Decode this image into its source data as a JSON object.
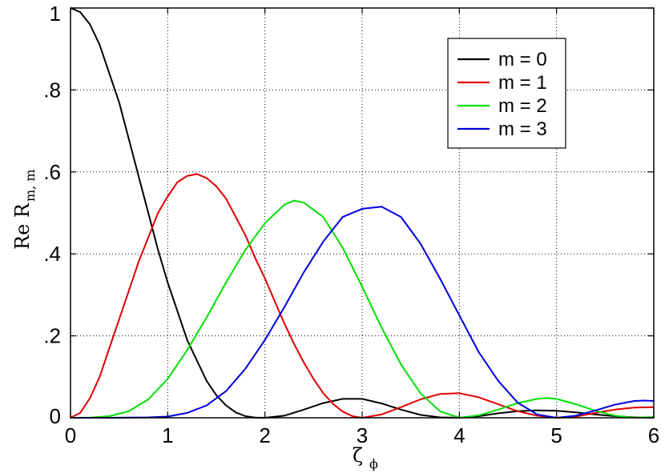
{
  "chart_data": {
    "type": "line",
    "xlabel": {
      "main": "ζ",
      "sub": "ϕ"
    },
    "ylabel": {
      "main": "Re R",
      "sub": "m, m"
    },
    "xlim": [
      0,
      6
    ],
    "ylim": [
      0,
      1
    ],
    "xticks": [
      0,
      1,
      2,
      3,
      4,
      5,
      6
    ],
    "xtick_labels": [
      "0",
      "1",
      "2",
      "3",
      "4",
      "5",
      "6"
    ],
    "yticks": [
      0,
      0.2,
      0.4,
      0.6,
      0.8,
      1.0
    ],
    "ytick_labels": [
      "0",
      ".2",
      ".4",
      ".6",
      ".8",
      "1"
    ],
    "grid": true,
    "legend_position": "top-right",
    "series": [
      {
        "name": "m = 0",
        "color": "#000000",
        "x": [
          0,
          0.1,
          0.2,
          0.3,
          0.4,
          0.5,
          0.6,
          0.7,
          0.8,
          0.9,
          1.0,
          1.1,
          1.2,
          1.3,
          1.4,
          1.5,
          1.6,
          1.7,
          1.8,
          1.9,
          2.0,
          2.2,
          2.4,
          2.6,
          2.8,
          3.0,
          3.2,
          3.4,
          3.6,
          3.8,
          4.0,
          4.2,
          4.4,
          4.6,
          4.8,
          5.0,
          5.2,
          5.4,
          5.6,
          5.8,
          6.0
        ],
        "y": [
          1.0,
          0.99,
          0.96,
          0.91,
          0.84,
          0.77,
          0.68,
          0.59,
          0.5,
          0.41,
          0.33,
          0.26,
          0.19,
          0.14,
          0.09,
          0.055,
          0.03,
          0.013,
          0.004,
          0.0005,
          0.0,
          0.005,
          0.02,
          0.036,
          0.046,
          0.046,
          0.035,
          0.02,
          0.007,
          0.001,
          0.0,
          0.004,
          0.011,
          0.016,
          0.018,
          0.017,
          0.013,
          0.008,
          0.004,
          0.001,
          0.0
        ]
      },
      {
        "name": "m = 1",
        "color": "#e00000",
        "x": [
          0,
          0.1,
          0.2,
          0.3,
          0.4,
          0.5,
          0.6,
          0.7,
          0.8,
          0.9,
          1.0,
          1.1,
          1.2,
          1.3,
          1.4,
          1.5,
          1.6,
          1.7,
          1.8,
          1.9,
          2.0,
          2.1,
          2.2,
          2.3,
          2.4,
          2.5,
          2.6,
          2.7,
          2.8,
          2.9,
          3.0,
          3.2,
          3.4,
          3.6,
          3.8,
          4.0,
          4.2,
          4.4,
          4.6,
          4.8,
          5.0,
          5.2,
          5.4,
          5.6,
          5.8,
          6.0
        ],
        "y": [
          0.0,
          0.012,
          0.048,
          0.1,
          0.17,
          0.24,
          0.31,
          0.38,
          0.44,
          0.5,
          0.54,
          0.575,
          0.59,
          0.595,
          0.585,
          0.565,
          0.535,
          0.49,
          0.445,
          0.39,
          0.34,
          0.285,
          0.23,
          0.18,
          0.135,
          0.095,
          0.06,
          0.034,
          0.015,
          0.004,
          0.0,
          0.008,
          0.026,
          0.045,
          0.058,
          0.06,
          0.05,
          0.033,
          0.016,
          0.005,
          0.0,
          0.003,
          0.012,
          0.02,
          0.025,
          0.026
        ]
      },
      {
        "name": "m = 2",
        "color": "#00e000",
        "x": [
          0,
          0.2,
          0.4,
          0.6,
          0.8,
          1.0,
          1.2,
          1.4,
          1.6,
          1.8,
          2.0,
          2.2,
          2.3,
          2.4,
          2.6,
          2.8,
          3.0,
          3.2,
          3.4,
          3.6,
          3.8,
          4.0,
          4.2,
          4.4,
          4.6,
          4.8,
          4.9,
          5.0,
          5.2,
          5.4,
          5.6,
          5.8,
          6.0
        ],
        "y": [
          0.0,
          0.0005,
          0.004,
          0.016,
          0.045,
          0.095,
          0.165,
          0.245,
          0.33,
          0.41,
          0.475,
          0.52,
          0.53,
          0.525,
          0.49,
          0.415,
          0.32,
          0.22,
          0.13,
          0.06,
          0.016,
          0.0,
          0.006,
          0.02,
          0.036,
          0.046,
          0.048,
          0.046,
          0.033,
          0.017,
          0.005,
          0.0,
          0.002
        ]
      },
      {
        "name": "m = 3",
        "color": "#0000e0",
        "x": [
          0,
          0.4,
          0.8,
          1.0,
          1.2,
          1.4,
          1.6,
          1.8,
          2.0,
          2.2,
          2.4,
          2.6,
          2.8,
          3.0,
          3.2,
          3.4,
          3.6,
          3.8,
          4.0,
          4.2,
          4.4,
          4.6,
          4.8,
          5.0,
          5.2,
          5.4,
          5.6,
          5.8,
          5.9,
          6.0
        ],
        "y": [
          0.0,
          0.0,
          0.001,
          0.003,
          0.012,
          0.03,
          0.065,
          0.12,
          0.19,
          0.27,
          0.355,
          0.43,
          0.49,
          0.51,
          0.515,
          0.49,
          0.425,
          0.34,
          0.25,
          0.16,
          0.09,
          0.037,
          0.008,
          0.0,
          0.005,
          0.018,
          0.032,
          0.041,
          0.042,
          0.041
        ]
      }
    ]
  }
}
